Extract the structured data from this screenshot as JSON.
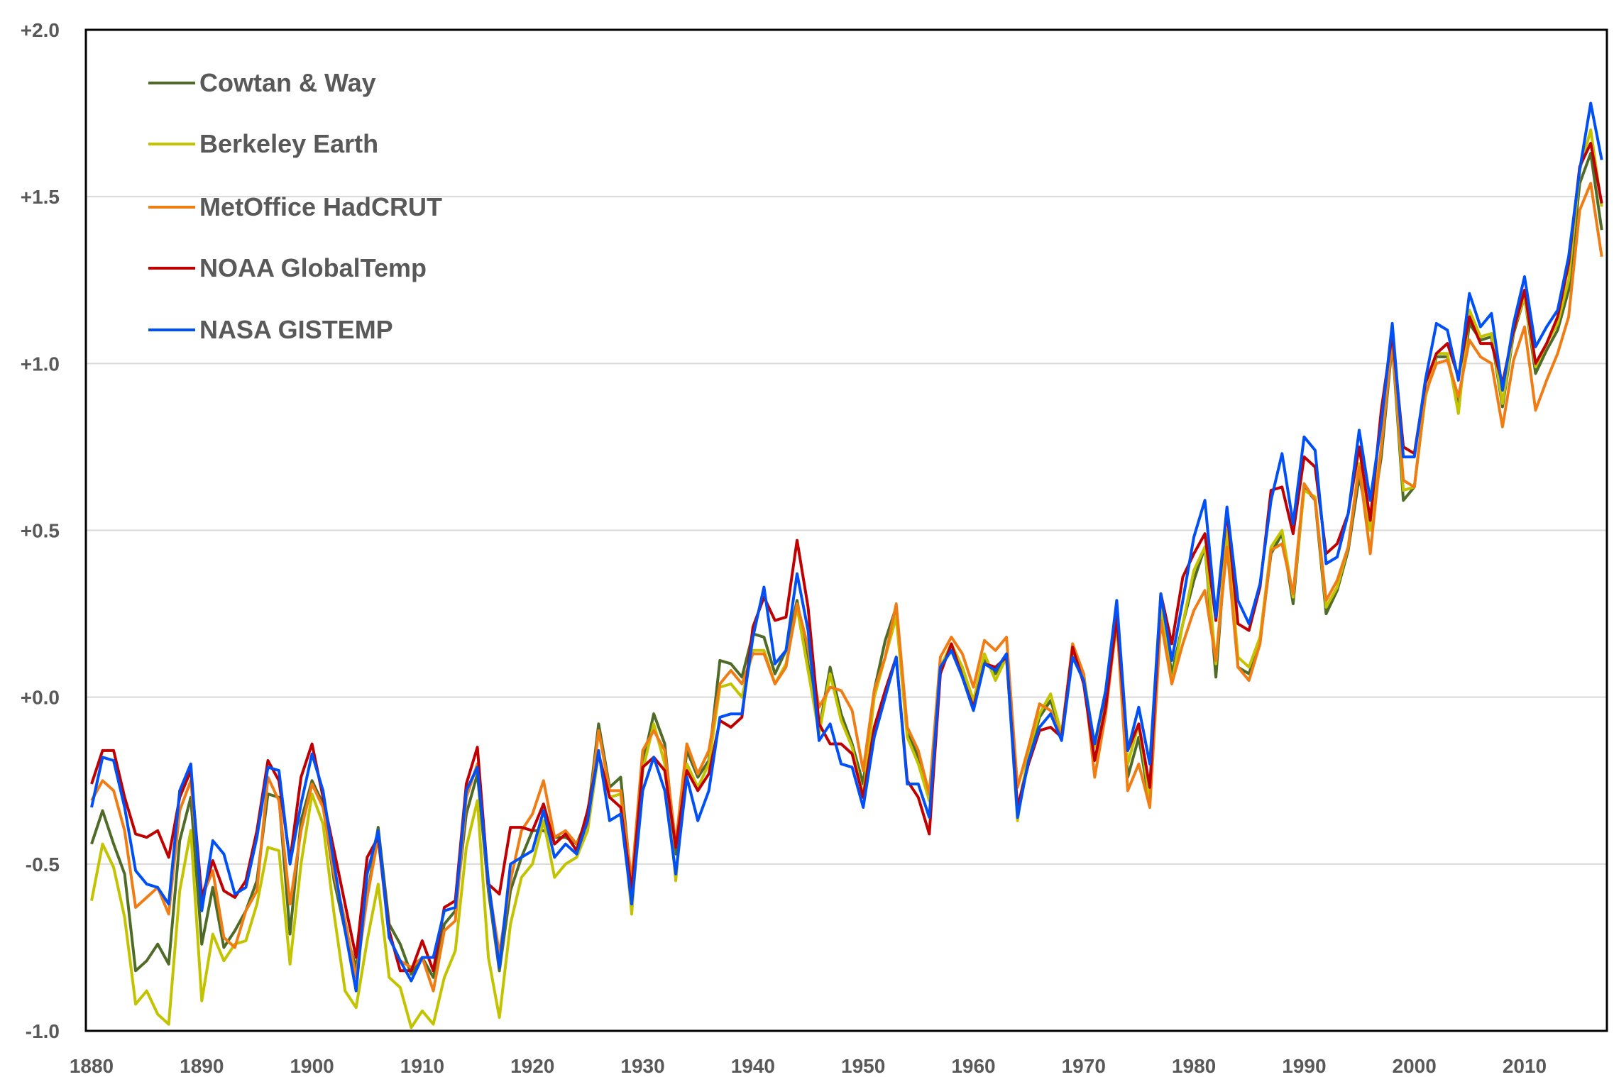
{
  "chart_data": {
    "type": "line",
    "title": "",
    "xlabel": "",
    "ylabel": "",
    "xlim": [
      1880,
      2017
    ],
    "ylim": [
      -1.0,
      2.0
    ],
    "grid": true,
    "legend_position": "top-left",
    "x_ticks": [
      "1880",
      "1890",
      "1900",
      "1910",
      "1920",
      "1930",
      "1940",
      "1950",
      "1960",
      "1970",
      "1980",
      "1990",
      "2000",
      "2010"
    ],
    "y_ticks": [
      "+2.0",
      "+1.5",
      "+1.0",
      "+0.5",
      "+0.0",
      "-0.5",
      "-1.0"
    ],
    "y_tick_values": [
      2.0,
      1.5,
      1.0,
      0.5,
      0.0,
      -0.5,
      -1.0
    ],
    "x": [
      1880,
      1881,
      1882,
      1883,
      1884,
      1885,
      1886,
      1887,
      1888,
      1889,
      1890,
      1891,
      1892,
      1893,
      1894,
      1895,
      1896,
      1897,
      1898,
      1899,
      1900,
      1901,
      1902,
      1903,
      1904,
      1905,
      1906,
      1907,
      1908,
      1909,
      1910,
      1911,
      1912,
      1913,
      1914,
      1915,
      1916,
      1917,
      1918,
      1919,
      1920,
      1921,
      1922,
      1923,
      1924,
      1925,
      1926,
      1927,
      1928,
      1929,
      1930,
      1931,
      1932,
      1933,
      1934,
      1935,
      1936,
      1937,
      1938,
      1939,
      1940,
      1941,
      1942,
      1943,
      1944,
      1945,
      1946,
      1947,
      1948,
      1949,
      1950,
      1951,
      1952,
      1953,
      1954,
      1955,
      1956,
      1957,
      1958,
      1959,
      1960,
      1961,
      1962,
      1963,
      1964,
      1965,
      1966,
      1967,
      1968,
      1969,
      1970,
      1971,
      1972,
      1973,
      1974,
      1975,
      1976,
      1977,
      1978,
      1979,
      1980,
      1981,
      1982,
      1983,
      1984,
      1985,
      1986,
      1987,
      1988,
      1989,
      1990,
      1991,
      1992,
      1993,
      1994,
      1995,
      1996,
      1997,
      1998,
      1999,
      2000,
      2001,
      2002,
      2003,
      2004,
      2005,
      2006,
      2007,
      2008,
      2009,
      2010,
      2011,
      2012,
      2013,
      2014,
      2015,
      2016,
      2017
    ],
    "series": [
      {
        "name": "Cowtan & Way",
        "color": "#4f6b28",
        "values": [
          -0.44,
          -0.34,
          -0.44,
          -0.53,
          -0.82,
          -0.79,
          -0.74,
          -0.8,
          -0.43,
          -0.3,
          -0.74,
          -0.57,
          -0.75,
          -0.7,
          -0.64,
          -0.55,
          -0.29,
          -0.3,
          -0.71,
          -0.37,
          -0.25,
          -0.32,
          -0.55,
          -0.7,
          -0.81,
          -0.6,
          -0.39,
          -0.68,
          -0.74,
          -0.83,
          -0.78,
          -0.84,
          -0.68,
          -0.64,
          -0.35,
          -0.23,
          -0.58,
          -0.82,
          -0.58,
          -0.48,
          -0.4,
          -0.4,
          -0.42,
          -0.42,
          -0.44,
          -0.36,
          -0.08,
          -0.27,
          -0.24,
          -0.57,
          -0.2,
          -0.05,
          -0.14,
          -0.47,
          -0.16,
          -0.24,
          -0.19,
          0.11,
          0.1,
          0.06,
          0.19,
          0.18,
          0.07,
          0.14,
          0.29,
          0.1,
          -0.1,
          0.09,
          -0.05,
          -0.14,
          -0.26,
          0.02,
          0.17,
          0.27,
          -0.1,
          -0.18,
          -0.31,
          0.09,
          0.14,
          0.08,
          -0.01,
          0.11,
          0.07,
          0.12,
          -0.34,
          -0.18,
          -0.06,
          -0.01,
          -0.11,
          0.15,
          0.06,
          -0.15,
          -0.01,
          0.24,
          -0.24,
          -0.12,
          -0.32,
          0.28,
          0.07,
          0.22,
          0.35,
          0.45,
          0.06,
          0.5,
          0.09,
          0.07,
          0.17,
          0.43,
          0.49,
          0.28,
          0.63,
          0.59,
          0.25,
          0.32,
          0.44,
          0.66,
          0.5,
          0.72,
          1.06,
          0.59,
          0.63,
          0.9,
          1.02,
          1.02,
          0.87,
          1.12,
          1.07,
          1.08,
          0.87,
          1.09,
          1.2,
          0.97,
          1.04,
          1.1,
          1.22,
          1.54,
          1.63,
          1.4
        ]
      },
      {
        "name": "Berkeley Earth",
        "color": "#c3c300",
        "values": [
          -0.61,
          -0.44,
          -0.51,
          -0.66,
          -0.92,
          -0.88,
          -0.95,
          -0.98,
          -0.58,
          -0.4,
          -0.91,
          -0.71,
          -0.79,
          -0.74,
          -0.73,
          -0.62,
          -0.45,
          -0.46,
          -0.8,
          -0.5,
          -0.29,
          -0.38,
          -0.65,
          -0.88,
          -0.93,
          -0.73,
          -0.56,
          -0.84,
          -0.87,
          -0.99,
          -0.94,
          -0.98,
          -0.84,
          -0.76,
          -0.45,
          -0.31,
          -0.78,
          -0.96,
          -0.68,
          -0.54,
          -0.5,
          -0.37,
          -0.54,
          -0.5,
          -0.48,
          -0.4,
          -0.17,
          -0.3,
          -0.29,
          -0.65,
          -0.22,
          -0.08,
          -0.2,
          -0.55,
          -0.2,
          -0.27,
          -0.2,
          0.03,
          0.04,
          0.0,
          0.14,
          0.14,
          0.04,
          0.1,
          0.27,
          0.08,
          -0.11,
          0.07,
          -0.07,
          -0.15,
          -0.3,
          0.0,
          0.12,
          0.24,
          -0.12,
          -0.2,
          -0.31,
          0.09,
          0.16,
          0.09,
          -0.01,
          0.13,
          0.05,
          0.12,
          -0.37,
          -0.16,
          -0.05,
          0.01,
          -0.11,
          0.14,
          0.07,
          -0.15,
          -0.03,
          0.22,
          -0.2,
          -0.08,
          -0.31,
          0.27,
          0.04,
          0.22,
          0.38,
          0.45,
          0.1,
          0.5,
          0.12,
          0.09,
          0.18,
          0.45,
          0.5,
          0.3,
          0.62,
          0.6,
          0.27,
          0.33,
          0.45,
          0.7,
          0.5,
          0.75,
          1.07,
          0.62,
          0.63,
          0.9,
          1.03,
          1.03,
          0.85,
          1.16,
          1.08,
          1.09,
          0.88,
          1.1,
          1.2,
          0.99,
          1.06,
          1.12,
          1.25,
          1.58,
          1.7,
          1.47
        ]
      },
      {
        "name": "MetOffice HadCRUT",
        "color": "#f07d14",
        "values": [
          -0.31,
          -0.25,
          -0.28,
          -0.4,
          -0.63,
          -0.6,
          -0.57,
          -0.65,
          -0.34,
          -0.25,
          -0.6,
          -0.52,
          -0.72,
          -0.75,
          -0.64,
          -0.58,
          -0.24,
          -0.31,
          -0.62,
          -0.4,
          -0.26,
          -0.33,
          -0.53,
          -0.67,
          -0.84,
          -0.6,
          -0.42,
          -0.72,
          -0.79,
          -0.81,
          -0.78,
          -0.88,
          -0.7,
          -0.67,
          -0.3,
          -0.2,
          -0.56,
          -0.77,
          -0.55,
          -0.4,
          -0.35,
          -0.25,
          -0.42,
          -0.4,
          -0.44,
          -0.38,
          -0.1,
          -0.28,
          -0.28,
          -0.55,
          -0.16,
          -0.1,
          -0.16,
          -0.44,
          -0.14,
          -0.23,
          -0.16,
          0.04,
          0.08,
          0.04,
          0.13,
          0.13,
          0.04,
          0.09,
          0.28,
          0.15,
          -0.03,
          0.03,
          0.02,
          -0.04,
          -0.22,
          0.02,
          0.12,
          0.28,
          -0.09,
          -0.16,
          -0.29,
          0.12,
          0.18,
          0.13,
          0.03,
          0.17,
          0.14,
          0.18,
          -0.27,
          -0.15,
          -0.02,
          -0.04,
          -0.12,
          0.16,
          0.07,
          -0.24,
          -0.05,
          0.23,
          -0.28,
          -0.2,
          -0.33,
          0.23,
          0.04,
          0.16,
          0.26,
          0.32,
          0.11,
          0.45,
          0.09,
          0.05,
          0.16,
          0.44,
          0.46,
          0.31,
          0.64,
          0.59,
          0.29,
          0.35,
          0.45,
          0.69,
          0.43,
          0.75,
          1.07,
          0.65,
          0.63,
          0.91,
          1.0,
          1.01,
          0.9,
          1.07,
          1.02,
          1.0,
          0.81,
          1.01,
          1.11,
          0.86,
          0.95,
          1.03,
          1.14,
          1.46,
          1.54,
          1.32
        ]
      },
      {
        "name": "NOAA GlobalTemp",
        "color": "#c00000",
        "values": [
          -0.26,
          -0.16,
          -0.16,
          -0.3,
          -0.41,
          -0.42,
          -0.4,
          -0.48,
          -0.3,
          -0.22,
          -0.6,
          -0.49,
          -0.58,
          -0.6,
          -0.55,
          -0.4,
          -0.19,
          -0.25,
          -0.49,
          -0.24,
          -0.14,
          -0.3,
          -0.46,
          -0.62,
          -0.78,
          -0.48,
          -0.42,
          -0.7,
          -0.82,
          -0.82,
          -0.73,
          -0.82,
          -0.63,
          -0.61,
          -0.26,
          -0.15,
          -0.56,
          -0.59,
          -0.39,
          -0.39,
          -0.4,
          -0.32,
          -0.44,
          -0.41,
          -0.46,
          -0.34,
          -0.17,
          -0.3,
          -0.33,
          -0.58,
          -0.21,
          -0.18,
          -0.22,
          -0.45,
          -0.22,
          -0.28,
          -0.23,
          -0.07,
          -0.09,
          -0.06,
          0.21,
          0.3,
          0.23,
          0.24,
          0.47,
          0.27,
          -0.08,
          -0.14,
          -0.14,
          -0.17,
          -0.3,
          -0.09,
          0.02,
          0.12,
          -0.25,
          -0.3,
          -0.41,
          0.07,
          0.16,
          0.06,
          -0.03,
          0.1,
          0.09,
          0.12,
          -0.33,
          -0.2,
          -0.1,
          -0.09,
          -0.12,
          0.15,
          0.04,
          -0.19,
          -0.03,
          0.24,
          -0.16,
          -0.08,
          -0.27,
          0.31,
          0.16,
          0.36,
          0.43,
          0.49,
          0.23,
          0.56,
          0.22,
          0.2,
          0.33,
          0.62,
          0.63,
          0.49,
          0.72,
          0.69,
          0.43,
          0.46,
          0.55,
          0.75,
          0.53,
          0.86,
          1.09,
          0.75,
          0.73,
          0.94,
          1.03,
          1.06,
          0.96,
          1.14,
          1.06,
          1.06,
          0.94,
          1.1,
          1.22,
          1.0,
          1.06,
          1.14,
          1.3,
          1.59,
          1.66,
          1.48
        ]
      },
      {
        "name": "NASA GISTEMP",
        "color": "#0050f5",
        "values": [
          -0.33,
          -0.18,
          -0.19,
          -0.33,
          -0.52,
          -0.56,
          -0.57,
          -0.62,
          -0.28,
          -0.2,
          -0.64,
          -0.43,
          -0.47,
          -0.59,
          -0.57,
          -0.42,
          -0.21,
          -0.22,
          -0.5,
          -0.32,
          -0.17,
          -0.28,
          -0.5,
          -0.7,
          -0.88,
          -0.53,
          -0.4,
          -0.72,
          -0.79,
          -0.85,
          -0.78,
          -0.78,
          -0.64,
          -0.63,
          -0.28,
          -0.21,
          -0.55,
          -0.81,
          -0.5,
          -0.48,
          -0.46,
          -0.34,
          -0.48,
          -0.44,
          -0.47,
          -0.37,
          -0.16,
          -0.37,
          -0.35,
          -0.62,
          -0.28,
          -0.18,
          -0.28,
          -0.53,
          -0.24,
          -0.37,
          -0.28,
          -0.06,
          -0.05,
          -0.05,
          0.18,
          0.33,
          0.1,
          0.14,
          0.37,
          0.2,
          -0.13,
          -0.08,
          -0.2,
          -0.21,
          -0.33,
          -0.12,
          0.0,
          0.12,
          -0.26,
          -0.26,
          -0.36,
          0.09,
          0.14,
          0.06,
          -0.04,
          0.1,
          0.08,
          0.13,
          -0.36,
          -0.19,
          -0.09,
          -0.05,
          -0.13,
          0.12,
          0.05,
          -0.14,
          0.02,
          0.29,
          -0.16,
          -0.03,
          -0.2,
          0.31,
          0.11,
          0.29,
          0.48,
          0.59,
          0.24,
          0.57,
          0.29,
          0.22,
          0.34,
          0.59,
          0.73,
          0.52,
          0.78,
          0.74,
          0.4,
          0.42,
          0.55,
          0.8,
          0.59,
          0.82,
          1.12,
          0.72,
          0.72,
          0.95,
          1.12,
          1.1,
          0.95,
          1.21,
          1.11,
          1.15,
          0.92,
          1.12,
          1.26,
          1.05,
          1.11,
          1.16,
          1.32,
          1.58,
          1.78,
          1.61
        ]
      }
    ]
  }
}
